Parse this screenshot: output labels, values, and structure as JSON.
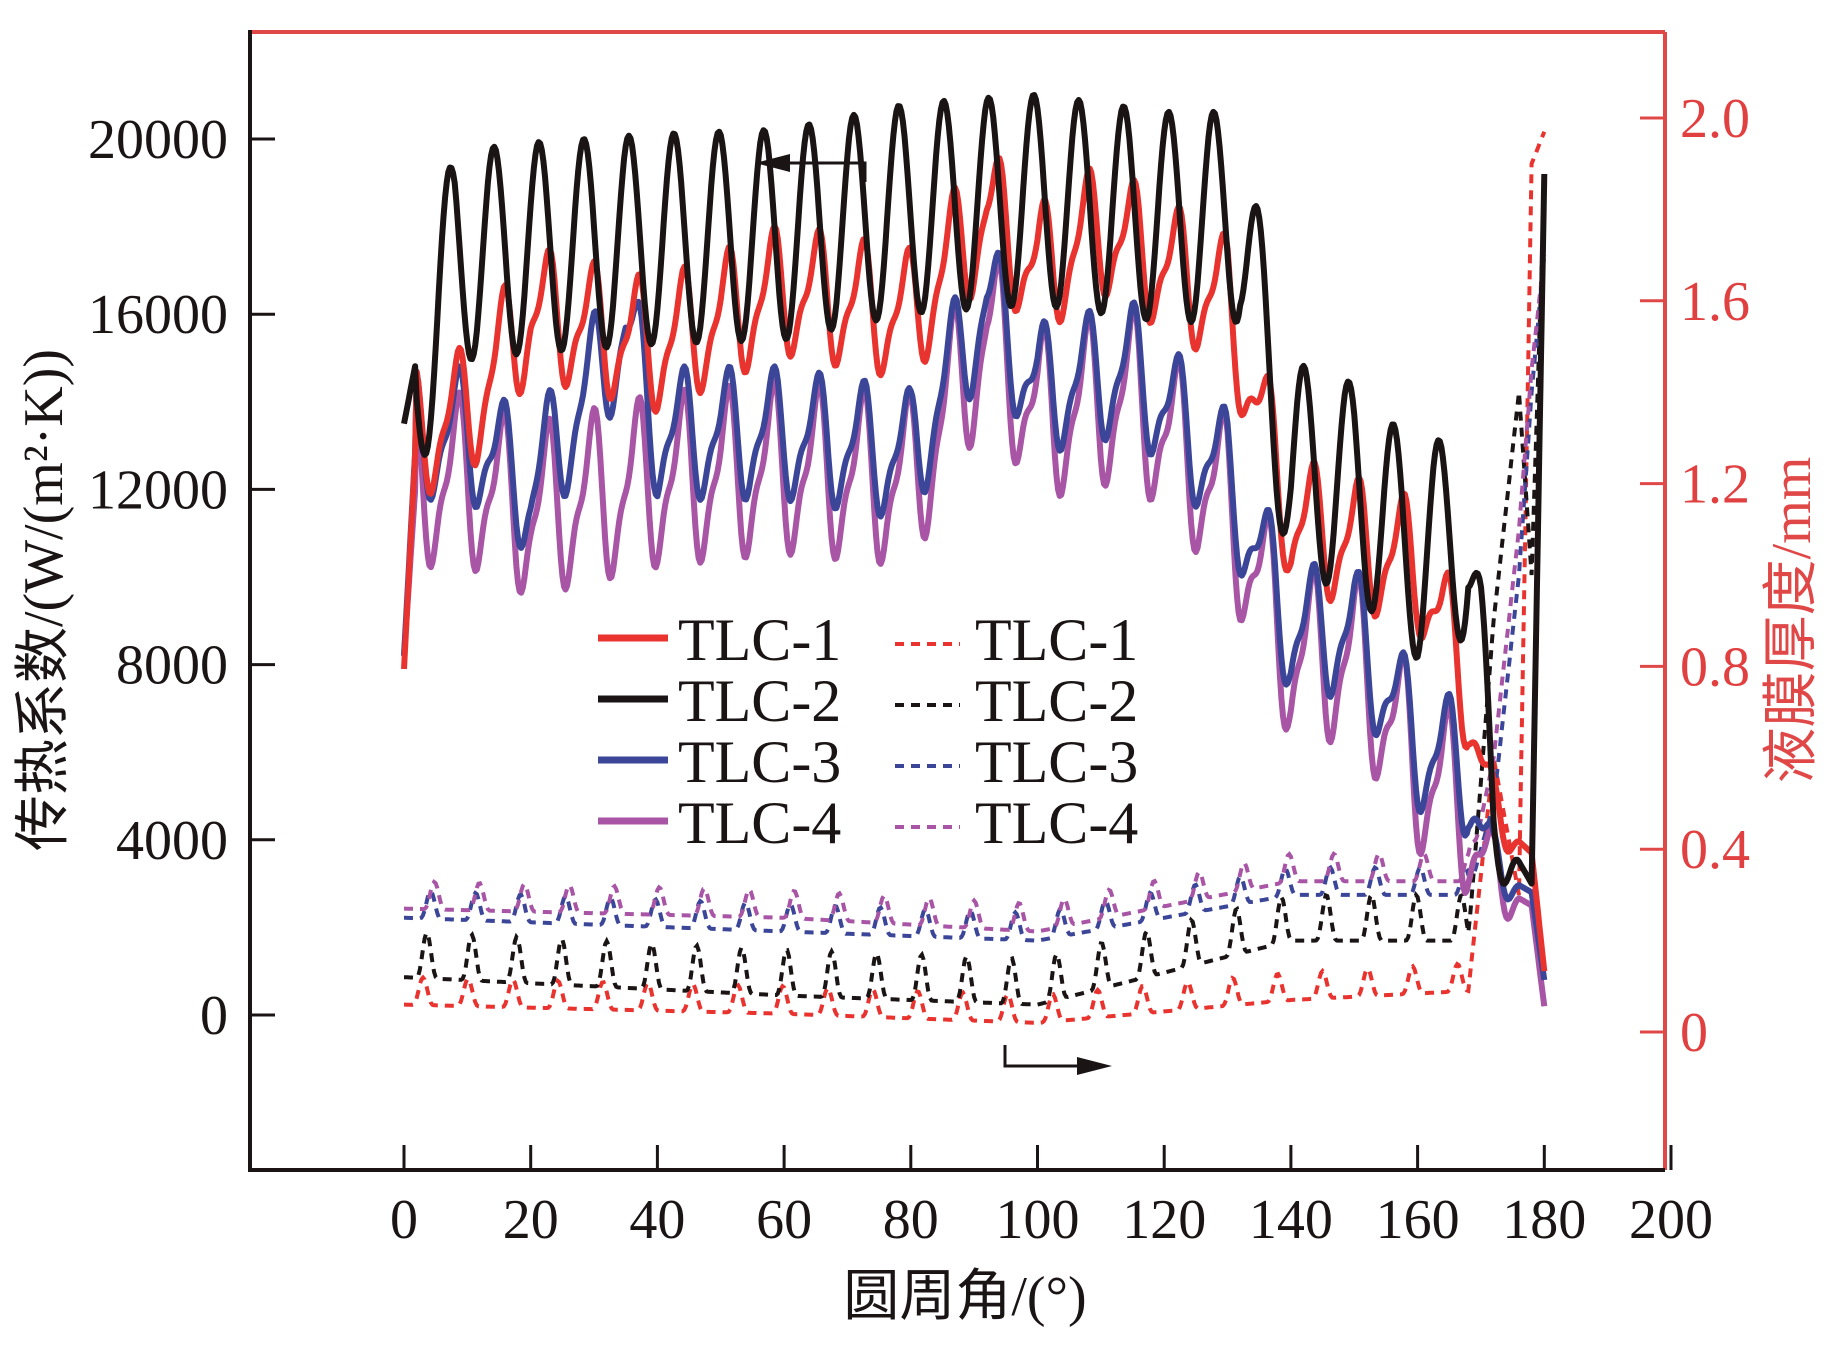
{
  "chart_data": {
    "type": "line",
    "title": "",
    "xlabel": "圆周角/(°)",
    "ylabel_left": "传热系数/(W/(m²·K))",
    "ylabel_right": "液膜厚度/mm",
    "xlim": [
      -25,
      200
    ],
    "ylim_left": [
      -3500,
      22500
    ],
    "ylim_right": [
      -0.3,
      2.2
    ],
    "x_ticks": [
      "0",
      "20",
      "40",
      "60",
      "80",
      "100",
      "120",
      "140",
      "160",
      "180",
      "200"
    ],
    "x_tick_values": [
      0,
      20,
      40,
      60,
      80,
      100,
      120,
      140,
      160,
      180,
      200
    ],
    "y_left_ticks": [
      "0",
      "4000",
      "8000",
      "12000",
      "16000",
      "20000"
    ],
    "y_left_tick_values": [
      0,
      4000,
      8000,
      12000,
      16000,
      20000
    ],
    "y_right_ticks": [
      "0",
      "0.4",
      "0.8",
      "1.2",
      "1.6",
      "2.0"
    ],
    "y_right_tick_values": [
      0,
      0.4,
      0.8,
      1.2,
      1.6,
      2.0
    ],
    "grid": false,
    "legend_placement": "center-left",
    "colors": {
      "TLC-1": "#e8332f",
      "TLC-2": "#1a1414",
      "TLC-3": "#3b4699",
      "TLC-4": "#a855a6",
      "right_axis": "#e04848"
    },
    "annotations": [
      {
        "type": "arrow",
        "direction": "left",
        "meaning": "solid lines read left axis",
        "x": 70,
        "y": 19500
      },
      {
        "type": "arrow",
        "direction": "right",
        "meaning": "dashed lines read right axis",
        "x": 100,
        "y_right": -0.05
      }
    ],
    "series_htc_params": [
      {
        "name": "TLC-1",
        "axis": "left",
        "style": "solid",
        "keypoints": [
          [
            0,
            7900
          ],
          [
            2,
            13500
          ],
          [
            10,
            14000
          ],
          [
            20,
            16300
          ],
          [
            40,
            15500
          ],
          [
            60,
            16800
          ],
          [
            80,
            16200
          ],
          [
            92,
            18600
          ],
          [
            100,
            17200
          ],
          [
            110,
            18200
          ],
          [
            130,
            16500
          ],
          [
            140,
            11500
          ],
          [
            150,
            11000
          ],
          [
            160,
            10500
          ],
          [
            168,
            7700
          ],
          [
            172,
            4500
          ],
          [
            178,
            3700
          ],
          [
            180,
            1000
          ]
        ],
        "osc_amp": 1300
      },
      {
        "name": "TLC-2",
        "axis": "left",
        "style": "solid",
        "keypoints": [
          [
            0,
            13500
          ],
          [
            2,
            15000
          ],
          [
            8,
            17800
          ],
          [
            20,
            18000
          ],
          [
            40,
            18200
          ],
          [
            60,
            18300
          ],
          [
            80,
            18900
          ],
          [
            100,
            19100
          ],
          [
            120,
            18700
          ],
          [
            132,
            18700
          ],
          [
            136,
            15500
          ],
          [
            140,
            13000
          ],
          [
            150,
            12500
          ],
          [
            160,
            11000
          ],
          [
            168,
            11500
          ],
          [
            172,
            4500
          ],
          [
            178,
            3000
          ],
          [
            180,
            19200
          ]
        ],
        "osc_amp": 2400
      },
      {
        "name": "TLC-3",
        "axis": "left",
        "style": "solid",
        "keypoints": [
          [
            0,
            8200
          ],
          [
            2,
            13500
          ],
          [
            10,
            13500
          ],
          [
            20,
            12200
          ],
          [
            35,
            16000
          ],
          [
            40,
            13500
          ],
          [
            60,
            13500
          ],
          [
            80,
            13000
          ],
          [
            92,
            16600
          ],
          [
            100,
            14500
          ],
          [
            115,
            15000
          ],
          [
            130,
            12500
          ],
          [
            140,
            9000
          ],
          [
            150,
            9000
          ],
          [
            160,
            6400
          ],
          [
            168,
            5800
          ],
          [
            172,
            3300
          ],
          [
            178,
            2800
          ],
          [
            180,
            800
          ]
        ],
        "osc_amp": 1300
      },
      {
        "name": "TLC-4",
        "axis": "left",
        "style": "solid",
        "keypoints": [
          [
            0,
            8200
          ],
          [
            2,
            12500
          ],
          [
            10,
            12500
          ],
          [
            20,
            11800
          ],
          [
            40,
            12500
          ],
          [
            60,
            12800
          ],
          [
            80,
            12500
          ],
          [
            92,
            16000
          ],
          [
            100,
            14000
          ],
          [
            115,
            14500
          ],
          [
            130,
            12000
          ],
          [
            140,
            8500
          ],
          [
            150,
            8500
          ],
          [
            160,
            6000
          ],
          [
            168,
            5000
          ],
          [
            172,
            3000
          ],
          [
            178,
            2500
          ],
          [
            180,
            200
          ]
        ],
        "osc_amp": 1700
      }
    ],
    "series_film_params": [
      {
        "name": "TLC-1",
        "axis": "right",
        "style": "dashed",
        "keypoints": [
          [
            0,
            0.06
          ],
          [
            60,
            0.04
          ],
          [
            100,
            0.02
          ],
          [
            140,
            0.07
          ],
          [
            168,
            0.09
          ],
          [
            172,
            0.6
          ],
          [
            176,
            0.3
          ],
          [
            178,
            1.9
          ],
          [
            180,
            1.97
          ]
        ],
        "osc_amp": 0.06
      },
      {
        "name": "TLC-2",
        "axis": "right",
        "style": "dashed",
        "keypoints": [
          [
            0,
            0.12
          ],
          [
            60,
            0.08
          ],
          [
            100,
            0.06
          ],
          [
            140,
            0.2
          ],
          [
            168,
            0.2
          ],
          [
            172,
            0.9
          ],
          [
            176,
            1.4
          ],
          [
            178,
            1.0
          ],
          [
            180,
            1.85
          ]
        ],
        "osc_amp": 0.1
      },
      {
        "name": "TLC-3",
        "axis": "right",
        "style": "dashed",
        "keypoints": [
          [
            0,
            0.25
          ],
          [
            60,
            0.22
          ],
          [
            100,
            0.2
          ],
          [
            140,
            0.3
          ],
          [
            168,
            0.3
          ],
          [
            172,
            0.5
          ],
          [
            176,
            1.0
          ],
          [
            178,
            1.4
          ],
          [
            180,
            1.7
          ]
        ],
        "osc_amp": 0.06
      },
      {
        "name": "TLC-4",
        "axis": "right",
        "style": "dashed",
        "keypoints": [
          [
            0,
            0.27
          ],
          [
            60,
            0.25
          ],
          [
            100,
            0.22
          ],
          [
            140,
            0.33
          ],
          [
            168,
            0.33
          ],
          [
            172,
            0.6
          ],
          [
            176,
            1.1
          ],
          [
            178,
            1.45
          ],
          [
            180,
            1.7
          ]
        ],
        "osc_amp": 0.06
      }
    ]
  },
  "legend": {
    "solid": [
      "TLC-1",
      "TLC-2",
      "TLC-3",
      "TLC-4"
    ],
    "dashed": [
      "TLC-1",
      "TLC-2",
      "TLC-3",
      "TLC-4"
    ]
  }
}
